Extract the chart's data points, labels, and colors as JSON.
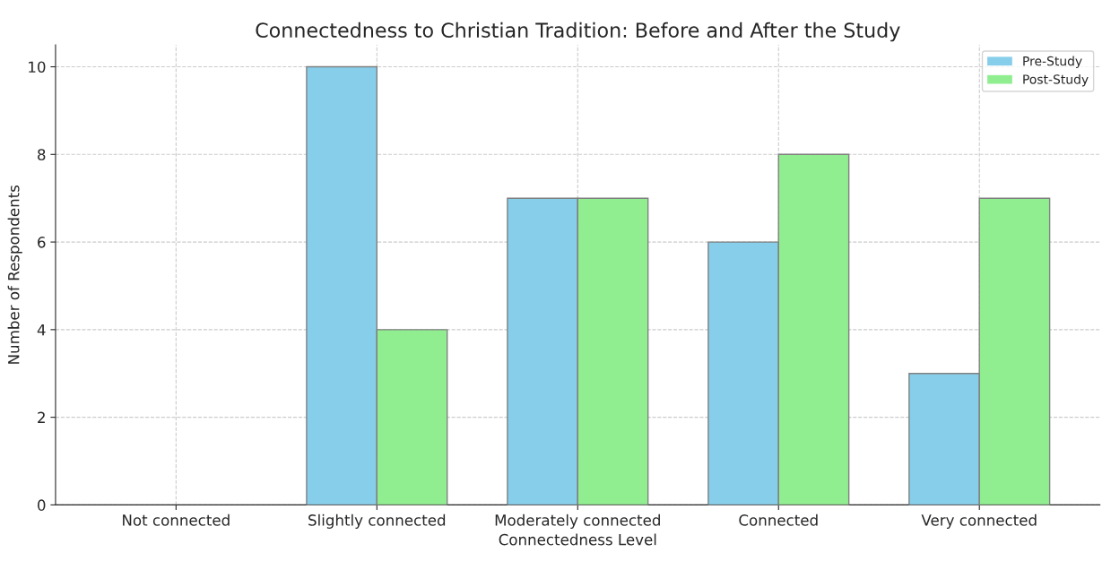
{
  "chart_data": {
    "type": "bar",
    "title": "Connectedness to Christian Tradition: Before and After the Study",
    "xlabel": "Connectedness Level",
    "ylabel": "Number of Respondents",
    "categories": [
      "Not connected",
      "Slightly connected",
      "Moderately connected",
      "Connected",
      "Very connected"
    ],
    "series": [
      {
        "name": "Pre-Study",
        "color": "#87ceeb",
        "values": [
          0,
          10,
          7,
          6,
          3
        ]
      },
      {
        "name": "Post-Study",
        "color": "#90ee90",
        "values": [
          0,
          4,
          7,
          8,
          7
        ]
      }
    ],
    "ylim": [
      0,
      10.5
    ],
    "yticks": [
      0,
      2,
      4,
      6,
      8,
      10
    ],
    "grid": true,
    "legend": "top right"
  }
}
